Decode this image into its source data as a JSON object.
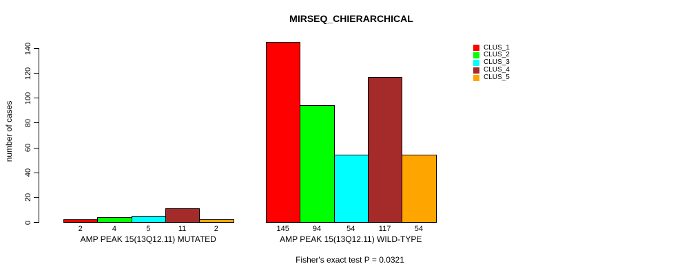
{
  "chart": {
    "title": "MIRSEQ_CHIERARCHICAL",
    "y_axis_label": "number of cases",
    "annotation": "Fisher's exact test P = 0.0321"
  },
  "chart_data": {
    "type": "bar",
    "title": "MIRSEQ_CHIERARCHICAL",
    "xlabel": "",
    "ylabel": "number of cases",
    "ylim": [
      0,
      145
    ],
    "yticks": [
      0,
      20,
      40,
      60,
      80,
      100,
      120,
      140
    ],
    "grid": false,
    "legend_position": "top-right",
    "legend": [
      {
        "label": "CLUS_1",
        "color": "#FF0000"
      },
      {
        "label": "CLUS_2",
        "color": "#00FF00"
      },
      {
        "label": "CLUS_3",
        "color": "#00FFFF"
      },
      {
        "label": "CLUS_4",
        "color": "#A52A2A"
      },
      {
        "label": "CLUS_5",
        "color": "#FFA500"
      }
    ],
    "groups": [
      {
        "label": "AMP PEAK 15(13Q12.11) MUTATED",
        "values": [
          2,
          4,
          5,
          11,
          2
        ]
      },
      {
        "label": "AMP PEAK 15(13Q12.11) WILD-TYPE",
        "values": [
          145,
          94,
          54,
          117,
          54
        ]
      }
    ],
    "annotation": "Fisher's exact test P = 0.0321"
  }
}
